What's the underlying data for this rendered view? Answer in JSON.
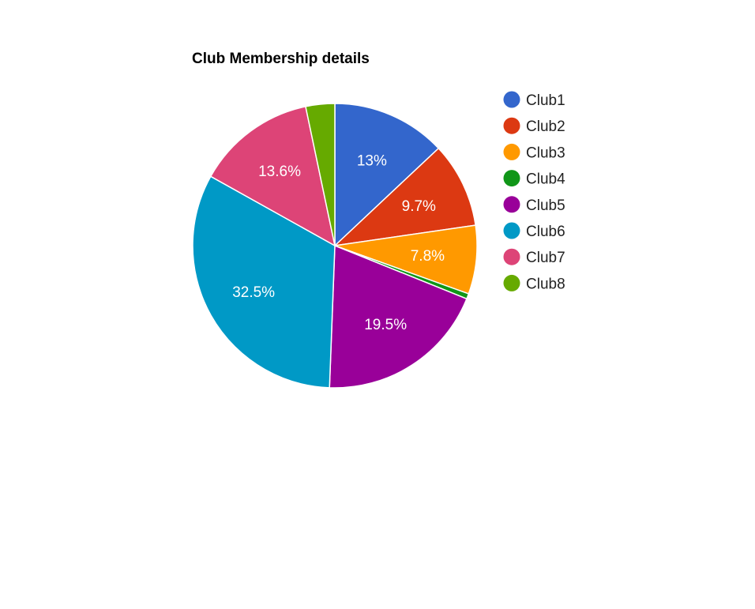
{
  "chart_data": {
    "type": "pie",
    "title": "Club Membership details",
    "legend_position": "right",
    "slices": [
      {
        "name": "Club1",
        "value": 13.0,
        "label": "13%",
        "color": "#3366cc"
      },
      {
        "name": "Club2",
        "value": 9.7,
        "label": "9.7%",
        "color": "#dc3912"
      },
      {
        "name": "Club3",
        "value": 7.8,
        "label": "7.8%",
        "color": "#ff9900"
      },
      {
        "name": "Club4",
        "value": 0.6,
        "label": "",
        "color": "#109618"
      },
      {
        "name": "Club5",
        "value": 19.5,
        "label": "19.5%",
        "color": "#990099"
      },
      {
        "name": "Club6",
        "value": 32.5,
        "label": "32.5%",
        "color": "#0099c6"
      },
      {
        "name": "Club7",
        "value": 13.6,
        "label": "13.6%",
        "color": "#dd4477"
      },
      {
        "name": "Club8",
        "value": 3.3,
        "label": "",
        "color": "#66aa00"
      }
    ]
  }
}
